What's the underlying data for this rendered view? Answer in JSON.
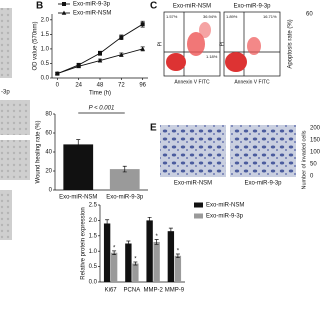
{
  "panels": {
    "b": "B",
    "c": "C",
    "e": "E"
  },
  "fragments": {
    "left_text": "-3p"
  },
  "flow": {
    "titles": [
      "Exo-miR-NSM",
      "Exo-miR-9-3p"
    ],
    "quadrants": [
      [
        "1.57%",
        "36.94%",
        "1.18%"
      ],
      [
        "1.89%",
        "16.71%"
      ]
    ],
    "xlabel": "Annexin V FITC",
    "ylabel": "PI",
    "side_label": "Apoptosis rate (%)",
    "side_tick": "60"
  },
  "invasion": {
    "titles": [
      "Exo-miR-NSM",
      "Exo-miR-9-3p"
    ],
    "side_label": "Number of invaded cells",
    "side_ticks": [
      "200",
      "150",
      "100",
      "50",
      "0"
    ]
  },
  "chart_data": [
    {
      "type": "line",
      "xlabel": "Time (h)",
      "ylabel": "OD value (570nm)",
      "x": [
        0,
        24,
        48,
        72,
        96
      ],
      "xlim": [
        -6,
        102
      ],
      "xticks": [
        0,
        24,
        48,
        72,
        96
      ],
      "ylim": [
        0,
        2.2
      ],
      "yticks": [
        {
          "value": 0,
          "label": "0.0"
        },
        {
          "value": 0.5,
          "label": "0.5"
        },
        {
          "value": 1,
          "label": "1.0"
        },
        {
          "value": 1.5,
          "label": "1.5"
        },
        {
          "value": 2,
          "label": "2.0"
        }
      ],
      "series": [
        {
          "name": "Exo-miR-9-3p",
          "color": "#111111",
          "marker": "square",
          "values": [
            0.15,
            0.45,
            0.85,
            1.4,
            1.85
          ],
          "errors": [
            0.03,
            0.05,
            0.07,
            0.08,
            0.1
          ]
        },
        {
          "name": "Exo-miR-NSM",
          "color": "#111111",
          "marker": "triangle",
          "values": [
            0.15,
            0.4,
            0.6,
            0.8,
            1.0
          ],
          "errors": [
            0.03,
            0.04,
            0.05,
            0.06,
            0.07
          ]
        }
      ]
    },
    {
      "type": "bar",
      "ylabel": "Wound healing rate (%)",
      "annotation": "P < 0.001",
      "categories": [
        "Exo-miR-NSM",
        "Exo-miR-9-3p"
      ],
      "values": [
        48,
        22
      ],
      "errors": [
        5,
        3
      ],
      "colors": [
        "#111111",
        "#9a9a9a"
      ],
      "ylim": [
        0,
        80
      ],
      "yticks": [
        0,
        20,
        40,
        60,
        80
      ]
    },
    {
      "type": "grouped-bar",
      "ylabel": "Relative protein expression",
      "annotation": "*",
      "categories": [
        "Ki67",
        "PCNA",
        "MMP-2",
        "MMP-9"
      ],
      "ylim": [
        0,
        2.5
      ],
      "yticks": [
        {
          "value": 0,
          "label": "0.0"
        },
        {
          "value": 0.5,
          "label": "0.5"
        },
        {
          "value": 1,
          "label": "1.0"
        },
        {
          "value": 1.5,
          "label": "1.5"
        },
        {
          "value": 2,
          "label": "2.0"
        },
        {
          "value": 2.5,
          "label": "2.5"
        }
      ],
      "series": [
        {
          "name": "Exo-miR-NSM",
          "color": "#111111",
          "values": [
            1.9,
            1.25,
            2.0,
            1.65
          ],
          "errors": [
            0.12,
            0.08,
            0.1,
            0.1
          ]
        },
        {
          "name": "Exo-miR-9-3p",
          "color": "#9a9a9a",
          "values": [
            0.95,
            0.6,
            1.3,
            0.85
          ],
          "errors": [
            0.06,
            0.05,
            0.08,
            0.06
          ]
        }
      ]
    }
  ]
}
